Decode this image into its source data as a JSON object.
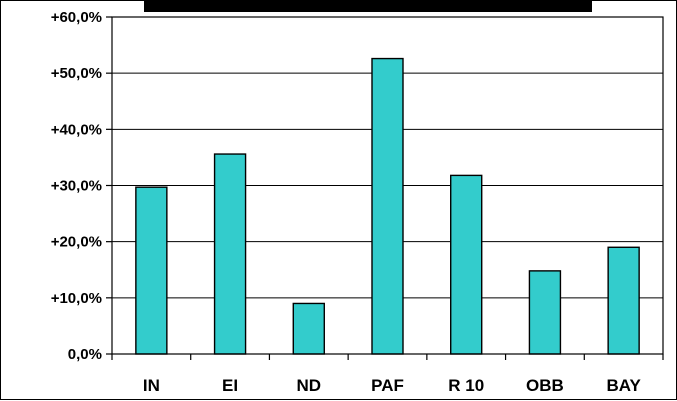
{
  "chart_data": {
    "type": "bar",
    "title": "",
    "xlabel": "",
    "ylabel": "",
    "categories": [
      "IN",
      "EI",
      "ND",
      "PAF",
      "R 10",
      "OBB",
      "BAY"
    ],
    "values": [
      29.7,
      35.6,
      9.0,
      52.6,
      31.8,
      14.8,
      19.0
    ],
    "ylim": [
      0,
      60
    ],
    "yticks": [
      0,
      10,
      20,
      30,
      40,
      50,
      60
    ],
    "ytick_labels": [
      "0,0%",
      "+10,0%",
      "+20,0%",
      "+30,0%",
      "+40,0%",
      "+50,0%",
      "+60,0%"
    ],
    "grid": true,
    "bar_color": "#33CCCC",
    "title_bar_color": "#000000"
  }
}
